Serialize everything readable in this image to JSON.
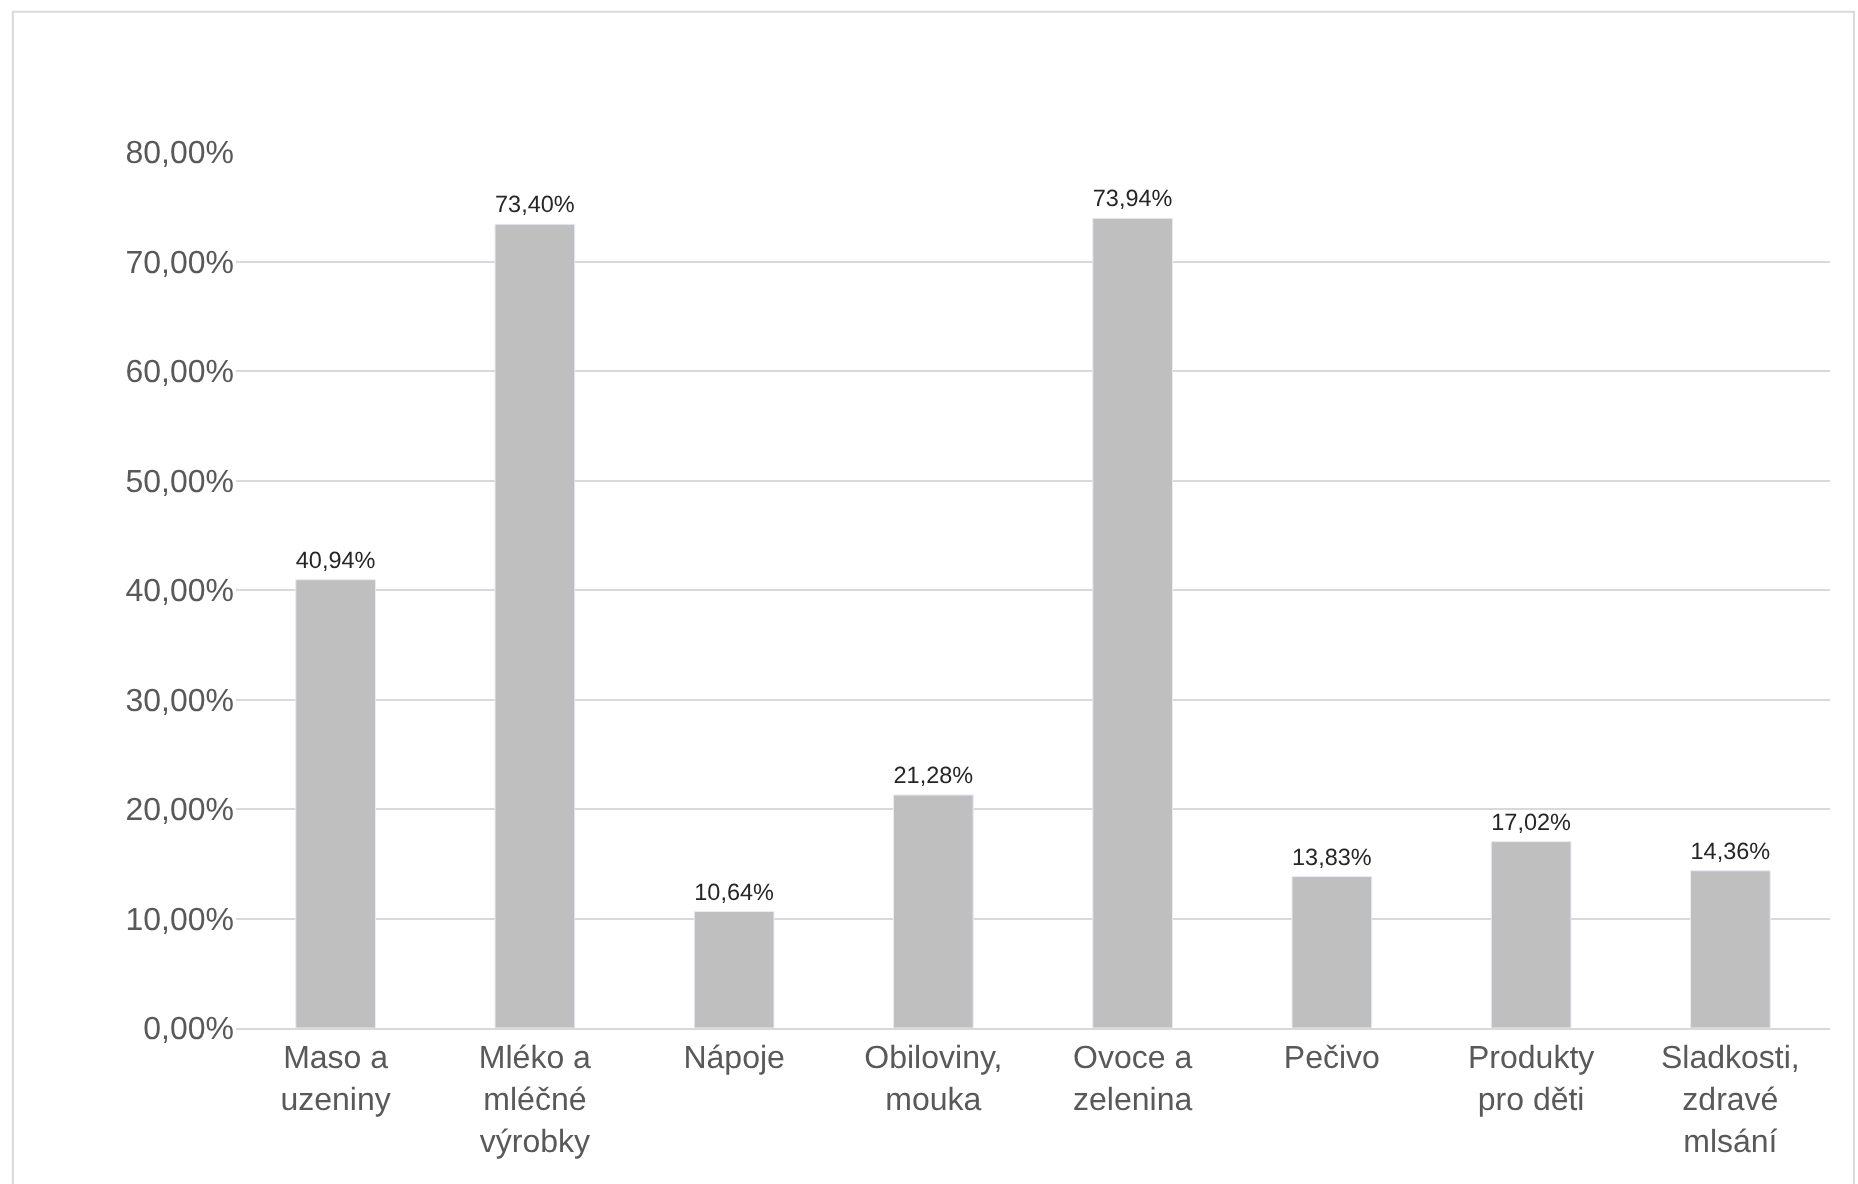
{
  "chart_data": {
    "type": "bar",
    "categories": [
      "Maso a uzeniny",
      "Mléko a mléčné výrobky",
      "Nápoje",
      "Obiloviny, mouka",
      "Ovoce a zelenina",
      "Pečivo",
      "Produkty pro děti",
      "Sladkosti, zdravé mlsání"
    ],
    "values": [
      40.94,
      73.4,
      10.64,
      21.28,
      73.94,
      13.83,
      17.02,
      14.36
    ],
    "value_labels": [
      "40,94%",
      "73,40%",
      "10,64%",
      "21,28%",
      "73,94%",
      "13,83%",
      "17,02%",
      "14,36%"
    ],
    "color": "#bfbfbf",
    "ylim": [
      0,
      80
    ],
    "yticks": [
      {
        "value": 0,
        "label": "0,00%"
      },
      {
        "value": 10,
        "label": "10,00%"
      },
      {
        "value": 20,
        "label": "20,00%"
      },
      {
        "value": 30,
        "label": "30,00%"
      },
      {
        "value": 40,
        "label": "40,00%"
      },
      {
        "value": 50,
        "label": "50,00%"
      },
      {
        "value": 60,
        "label": "60,00%"
      },
      {
        "value": 70,
        "label": "70,00%"
      },
      {
        "value": 80,
        "label": "80,00%"
      }
    ],
    "grid": "y",
    "legend": false
  }
}
